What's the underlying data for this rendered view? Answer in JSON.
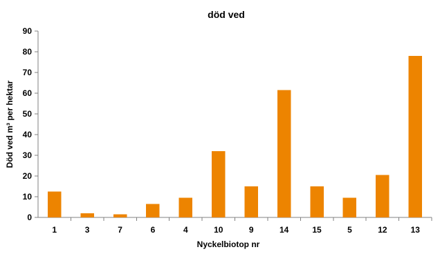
{
  "chart_data": {
    "type": "bar",
    "title": "död ved",
    "xlabel": "Nyckelbiotop nr",
    "ylabel": "Död ved m³ per hektar",
    "categories": [
      "1",
      "3",
      "7",
      "6",
      "4",
      "10",
      "9",
      "14",
      "15",
      "5",
      "12",
      "13"
    ],
    "values": [
      12.5,
      2,
      1.5,
      6.5,
      9.5,
      32,
      15,
      61.5,
      15,
      9.5,
      20.5,
      78
    ],
    "ylim": [
      0,
      90
    ],
    "yticks": [
      "0",
      "10",
      "20",
      "30",
      "40",
      "50",
      "60",
      "70",
      "80",
      "90"
    ],
    "grid": false,
    "legend": "none",
    "bar_color": "#ED8400"
  }
}
